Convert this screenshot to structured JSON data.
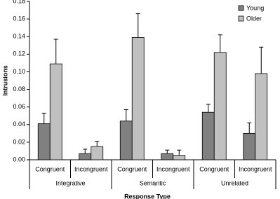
{
  "chart_data": {
    "type": "bar",
    "x_label": "Response Type",
    "y_label": "Intrusions",
    "categories": [
      "Congruent",
      "Incongruent",
      "Congruent",
      "Incongruent",
      "Congruent",
      "Incongruent"
    ],
    "groups": [
      "Integrative",
      "Semantic",
      "Unrelated"
    ],
    "series": [
      {
        "name": "Young",
        "color": "#808080",
        "values": [
          0.041,
          0.007,
          0.044,
          0.007,
          0.054,
          0.03
        ],
        "errors": [
          0.012,
          0.005,
          0.013,
          0.004,
          0.009,
          0.012
        ]
      },
      {
        "name": "Older",
        "color": "#c0c0c0",
        "values": [
          0.109,
          0.015,
          0.139,
          0.005,
          0.122,
          0.098
        ],
        "errors": [
          0.028,
          0.006,
          0.027,
          0.006,
          0.02,
          0.03
        ]
      }
    ],
    "ylim": [
      0,
      0.18
    ],
    "yticks": [
      {
        "value": 0,
        "label": "0.00"
      },
      0.02,
      0.04,
      0.06,
      0.08,
      {
        "value": 0.1,
        "label": "0.10"
      },
      0.12,
      0.14,
      0.16,
      0.18
    ],
    "legend": "top-right"
  }
}
